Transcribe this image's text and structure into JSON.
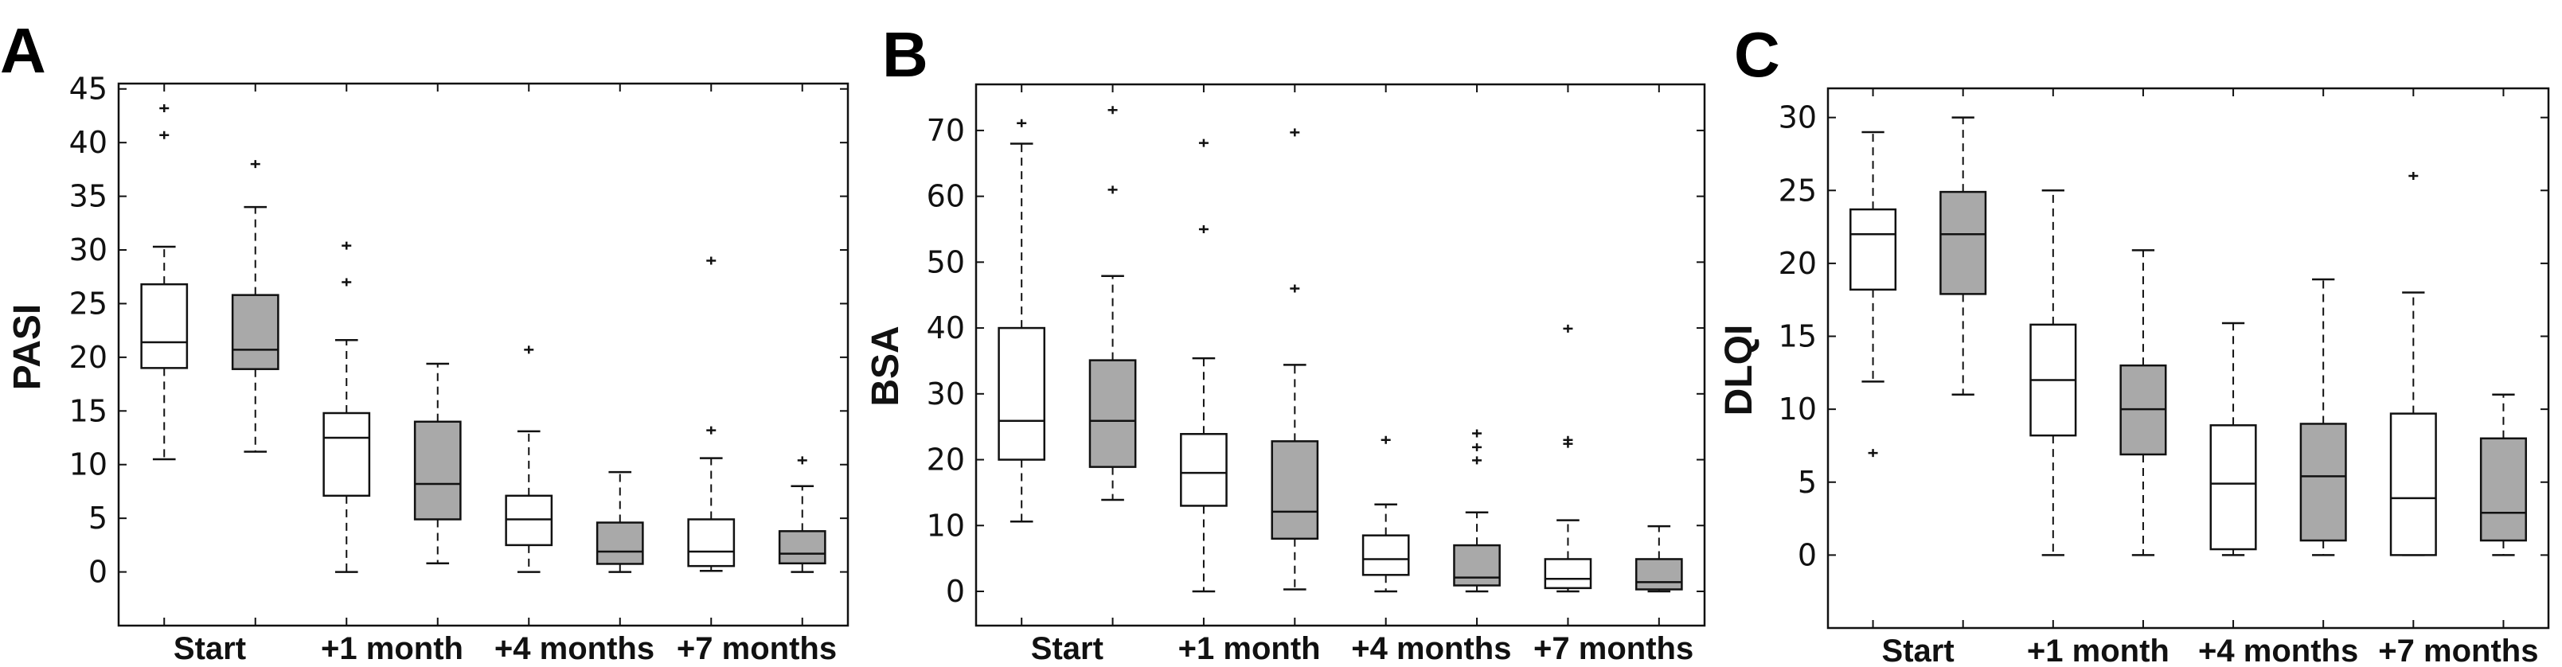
{
  "colors": {
    "group1": "#ffffff",
    "group2": "#a9a9a9",
    "stroke": "#111111"
  },
  "chart_data": [
    {
      "type": "box",
      "panel": "A",
      "ylabel": "PASI",
      "ylim": [
        -5,
        45.5
      ],
      "yticks": [
        0,
        5,
        10,
        15,
        20,
        25,
        30,
        35,
        40,
        45
      ],
      "categories": [
        "Start",
        "+1 month",
        "+4 months",
        "+7 months"
      ],
      "boxes": [
        {
          "category": "Start",
          "group": 1,
          "whisker_low": 10.5,
          "q1": 19.0,
          "median": 21.4,
          "q3": 26.8,
          "whisker_high": 30.3,
          "outliers": [
            40.7,
            43.2
          ]
        },
        {
          "category": "Start",
          "group": 2,
          "whisker_low": 11.2,
          "q1": 18.9,
          "median": 20.7,
          "q3": 25.8,
          "whisker_high": 34.0,
          "outliers": [
            38.0
          ]
        },
        {
          "category": "+1 month",
          "group": 1,
          "whisker_low": 0,
          "q1": 7.1,
          "median": 12.5,
          "q3": 14.8,
          "whisker_high": 21.6,
          "outliers": [
            27.0,
            30.4
          ]
        },
        {
          "category": "+1 month",
          "group": 2,
          "whisker_low": 0.8,
          "q1": 4.9,
          "median": 8.2,
          "q3": 14.0,
          "whisker_high": 19.4,
          "outliers": []
        },
        {
          "category": "+4 months",
          "group": 1,
          "whisker_low": 0,
          "q1": 2.5,
          "median": 4.9,
          "q3": 7.1,
          "whisker_high": 13.1,
          "outliers": [
            20.7
          ]
        },
        {
          "category": "+4 months",
          "group": 2,
          "whisker_low": 0,
          "q1": 0.75,
          "median": 1.9,
          "q3": 4.6,
          "whisker_high": 9.3,
          "outliers": []
        },
        {
          "category": "+7 months",
          "group": 1,
          "whisker_low": 0.1,
          "q1": 0.55,
          "median": 1.9,
          "q3": 4.9,
          "whisker_high": 10.6,
          "outliers": [
            13.2,
            29.0
          ]
        },
        {
          "category": "+7 months",
          "group": 2,
          "whisker_low": 0,
          "q1": 0.8,
          "median": 1.7,
          "q3": 3.8,
          "whisker_high": 8.0,
          "outliers": [
            10.4
          ]
        }
      ]
    },
    {
      "type": "box",
      "panel": "B",
      "ylabel": "BSA",
      "ylim": [
        -5.2,
        77
      ],
      "yticks": [
        0,
        10,
        20,
        30,
        40,
        50,
        60,
        70
      ],
      "categories": [
        "Start",
        "+1 month",
        "+4 months",
        "+7 months"
      ],
      "boxes": [
        {
          "category": "Start",
          "group": 1,
          "whisker_low": 10.6,
          "q1": 20,
          "median": 25.9,
          "q3": 40,
          "whisker_high": 68,
          "outliers": [
            71.1
          ]
        },
        {
          "category": "Start",
          "group": 2,
          "whisker_low": 13.9,
          "q1": 18.9,
          "median": 25.9,
          "q3": 35.1,
          "whisker_high": 47.9,
          "outliers": [
            61,
            73.1
          ]
        },
        {
          "category": "+1 month",
          "group": 1,
          "whisker_low": 0,
          "q1": 13,
          "median": 18,
          "q3": 23.9,
          "whisker_high": 35.4,
          "outliers": [
            55,
            68.1
          ]
        },
        {
          "category": "+1 month",
          "group": 2,
          "whisker_low": 0.3,
          "q1": 8,
          "median": 12.1,
          "q3": 22.8,
          "whisker_high": 34.4,
          "outliers": [
            46,
            69.7
          ]
        },
        {
          "category": "+4 months",
          "group": 1,
          "whisker_low": 0,
          "q1": 2.5,
          "median": 4.9,
          "q3": 8.5,
          "whisker_high": 13.2,
          "outliers": [
            23
          ]
        },
        {
          "category": "+4 months",
          "group": 2,
          "whisker_low": 0,
          "q1": 0.9,
          "median": 2.1,
          "q3": 7,
          "whisker_high": 12,
          "outliers": [
            19.9,
            21.9,
            24
          ]
        },
        {
          "category": "+7 months",
          "group": 1,
          "whisker_low": 0,
          "q1": 0.5,
          "median": 1.9,
          "q3": 4.9,
          "whisker_high": 10.8,
          "outliers": [
            22.4,
            23,
            39.9
          ]
        },
        {
          "category": "+7 months",
          "group": 2,
          "whisker_low": 0,
          "q1": 0.3,
          "median": 1.4,
          "q3": 4.9,
          "whisker_high": 9.9,
          "outliers": []
        }
      ]
    },
    {
      "type": "box",
      "panel": "C",
      "ylabel": "DLQI",
      "ylim": [
        -5,
        32
      ],
      "yticks": [
        0,
        5,
        10,
        15,
        20,
        25,
        30
      ],
      "categories": [
        "Start",
        "+1 month",
        "+4 months",
        "+7 months"
      ],
      "boxes": [
        {
          "category": "Start",
          "group": 1,
          "whisker_low": 11.9,
          "q1": 18.2,
          "median": 22,
          "q3": 23.7,
          "whisker_high": 29,
          "outliers": [
            7.0
          ]
        },
        {
          "category": "Start",
          "group": 2,
          "whisker_low": 11,
          "q1": 17.9,
          "median": 22,
          "q3": 24.9,
          "whisker_high": 30,
          "outliers": []
        },
        {
          "category": "+1 month",
          "group": 1,
          "whisker_low": 0,
          "q1": 8.2,
          "median": 12,
          "q3": 15.8,
          "whisker_high": 25,
          "outliers": []
        },
        {
          "category": "+1 month",
          "group": 2,
          "whisker_low": 0,
          "q1": 6.9,
          "median": 10,
          "q3": 13,
          "whisker_high": 20.9,
          "outliers": []
        },
        {
          "category": "+4 months",
          "group": 1,
          "whisker_low": 0,
          "q1": 0.4,
          "median": 4.9,
          "q3": 8.9,
          "whisker_high": 15.9,
          "outliers": []
        },
        {
          "category": "+4 months",
          "group": 2,
          "whisker_low": 0,
          "q1": 1,
          "median": 5.4,
          "q3": 9,
          "whisker_high": 18.9,
          "outliers": []
        },
        {
          "category": "+7 months",
          "group": 1,
          "whisker_low": 0,
          "q1": 0,
          "median": 3.9,
          "q3": 9.7,
          "whisker_high": 18,
          "outliers": [
            26
          ]
        },
        {
          "category": "+7 months",
          "group": 2,
          "whisker_low": 0,
          "q1": 1,
          "median": 2.9,
          "q3": 8,
          "whisker_high": 11,
          "outliers": []
        }
      ]
    }
  ]
}
